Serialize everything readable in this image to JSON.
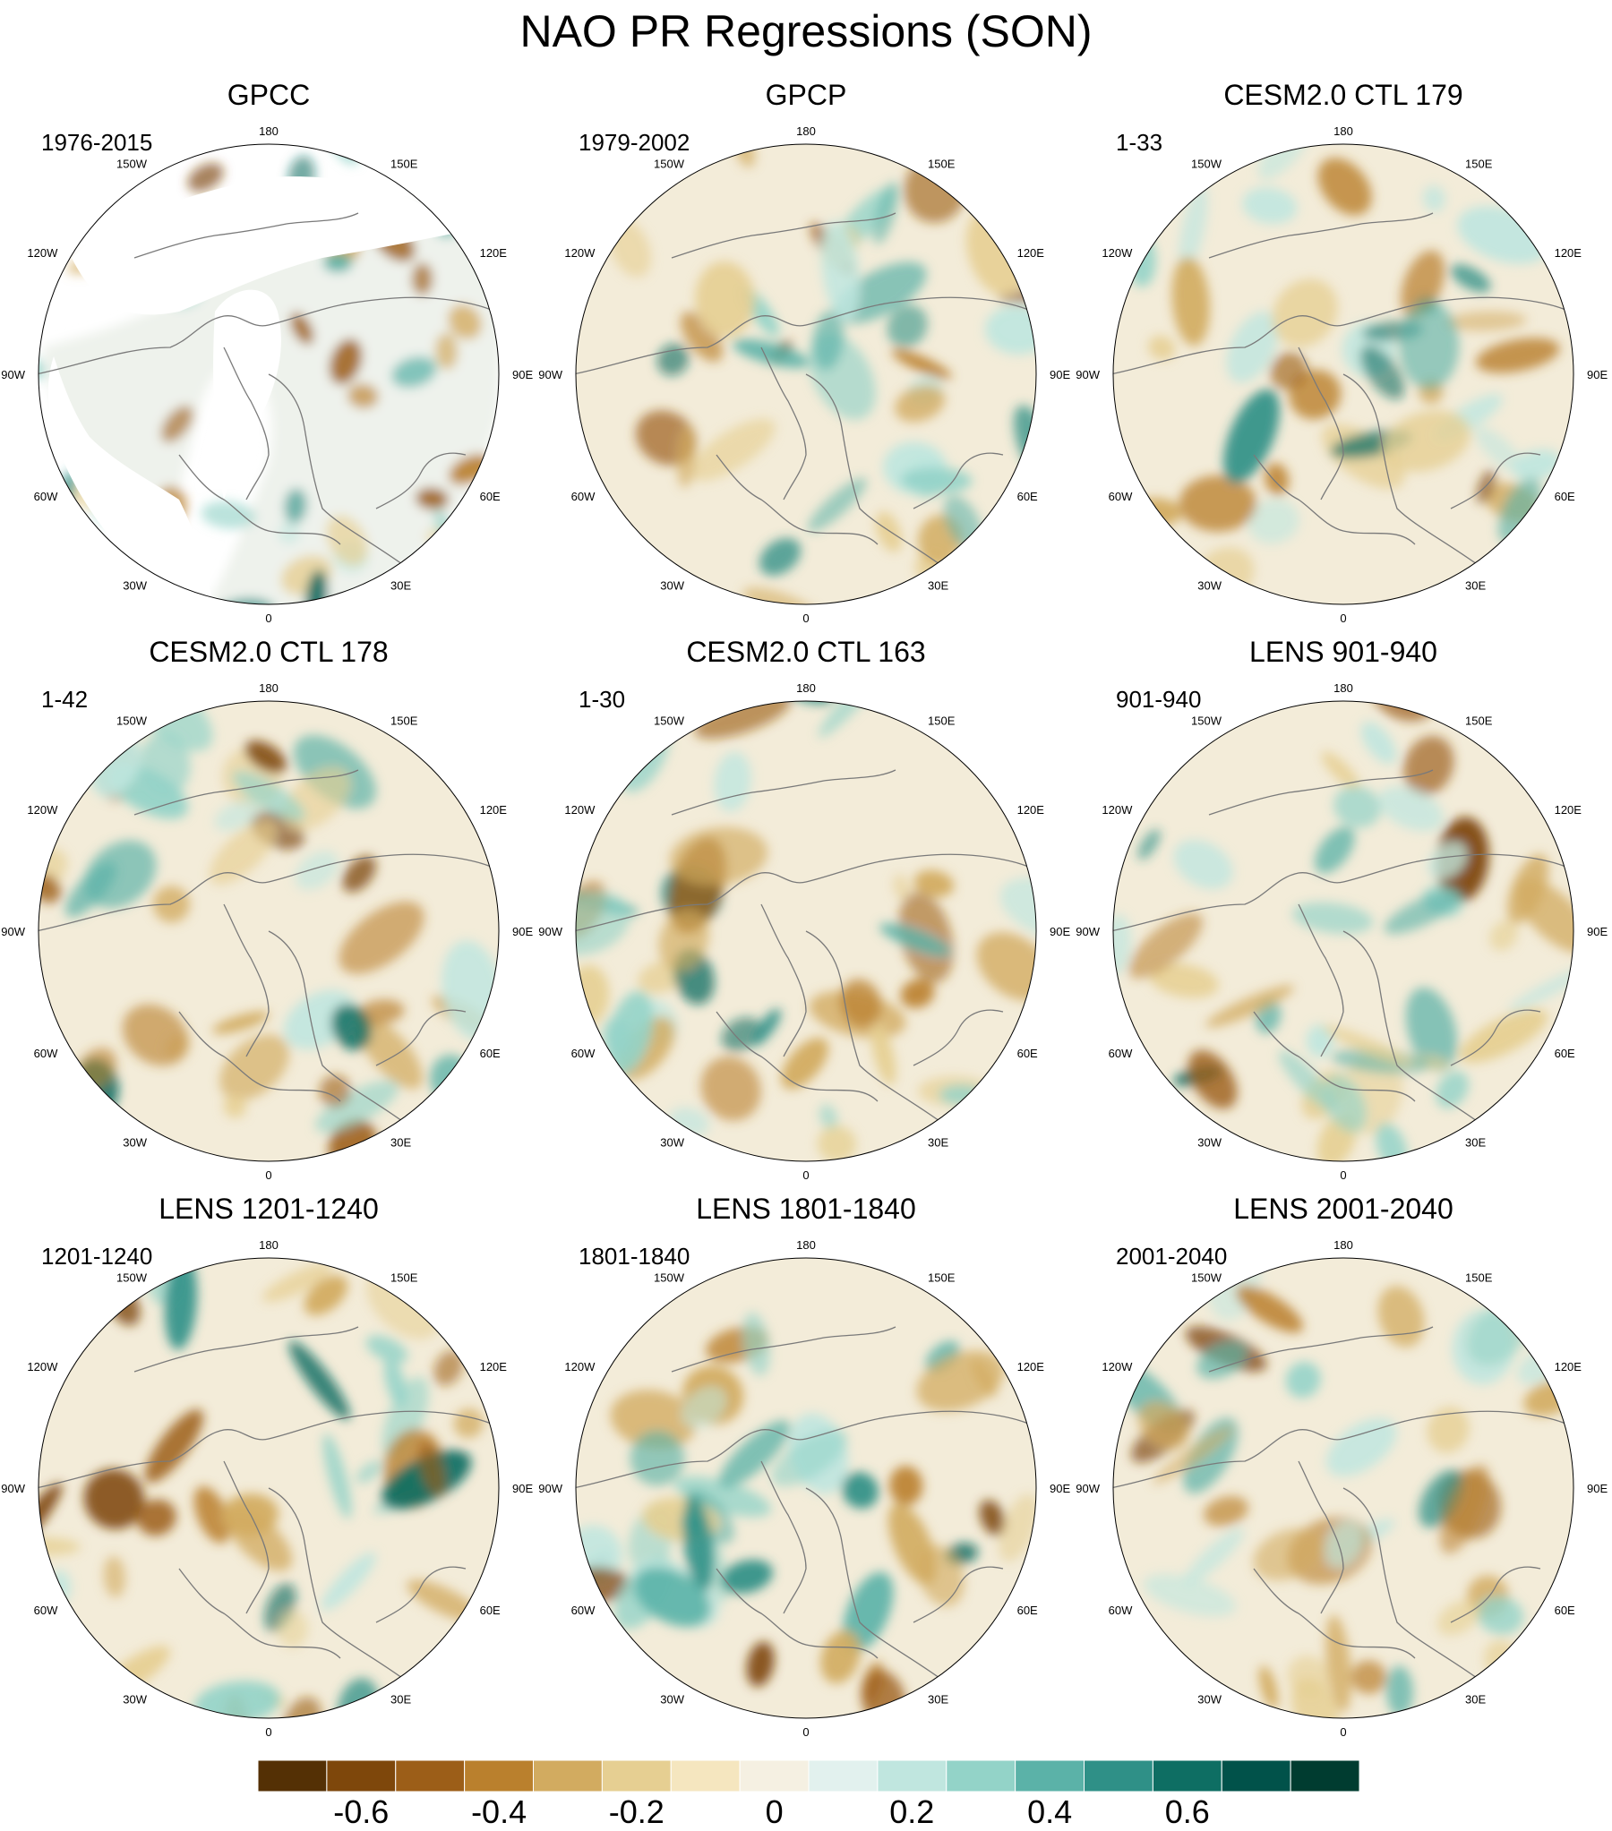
{
  "title": "NAO PR Regressions (SON)",
  "longitude_labels": [
    "180",
    "150E",
    "120E",
    "90E",
    "60E",
    "30E",
    "0",
    "30W",
    "60W",
    "90W",
    "120W",
    "150W"
  ],
  "panels": [
    {
      "title": "GPCC",
      "period": "1976-2015"
    },
    {
      "title": "GPCP",
      "period": "1979-2002"
    },
    {
      "title": "CESM2.0 CTL 179",
      "period": "1-33"
    },
    {
      "title": "CESM2.0 CTL 178",
      "period": "1-42"
    },
    {
      "title": "CESM2.0 CTL 163",
      "period": "1-30"
    },
    {
      "title": "LENS 901-940",
      "period": "901-940"
    },
    {
      "title": "LENS 1201-1240",
      "period": "1201-1240"
    },
    {
      "title": "LENS 1801-1840",
      "period": "1801-1840"
    },
    {
      "title": "LENS 2001-2040",
      "period": "2001-2040"
    }
  ],
  "colorbar": {
    "colors": [
      "#543005",
      "#7e470b",
      "#9c5e18",
      "#ba802d",
      "#d2ab60",
      "#e6cf92",
      "#f5e6bf",
      "#f5f0e2",
      "#e2f1ee",
      "#c0e6df",
      "#93d3c8",
      "#5bb2a8",
      "#2f9087",
      "#0e6e63",
      "#01524a",
      "#003c30"
    ],
    "tick_labels": [
      "-0.6",
      "-0.4",
      "-0.2",
      "0",
      "0.2",
      "0.4",
      "0.6"
    ]
  }
}
